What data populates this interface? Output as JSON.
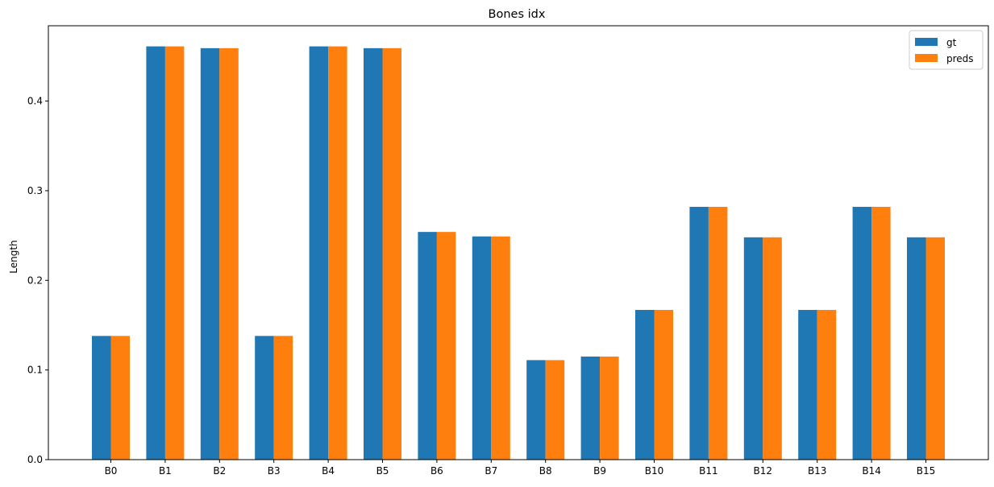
{
  "chart_data": {
    "type": "bar",
    "title": "Bones idx",
    "xlabel": "",
    "ylabel": "Length",
    "categories": [
      "B0",
      "B1",
      "B2",
      "B3",
      "B4",
      "B5",
      "B6",
      "B7",
      "B8",
      "B9",
      "B10",
      "B11",
      "B12",
      "B13",
      "B14",
      "B15"
    ],
    "series": [
      {
        "name": "gt",
        "color": "#1f77b4",
        "values": [
          0.138,
          0.461,
          0.459,
          0.138,
          0.461,
          0.459,
          0.254,
          0.249,
          0.111,
          0.115,
          0.167,
          0.282,
          0.248,
          0.167,
          0.282,
          0.248
        ]
      },
      {
        "name": "preds",
        "color": "#ff7f0e",
        "values": [
          0.138,
          0.461,
          0.459,
          0.138,
          0.461,
          0.459,
          0.254,
          0.249,
          0.111,
          0.115,
          0.167,
          0.282,
          0.248,
          0.167,
          0.282,
          0.248
        ]
      }
    ],
    "ylim": [
      0,
      0.484
    ],
    "yticks": [
      "0.0",
      "0.1",
      "0.2",
      "0.3",
      "0.4"
    ],
    "grid": false,
    "legend_position": "top-right"
  }
}
